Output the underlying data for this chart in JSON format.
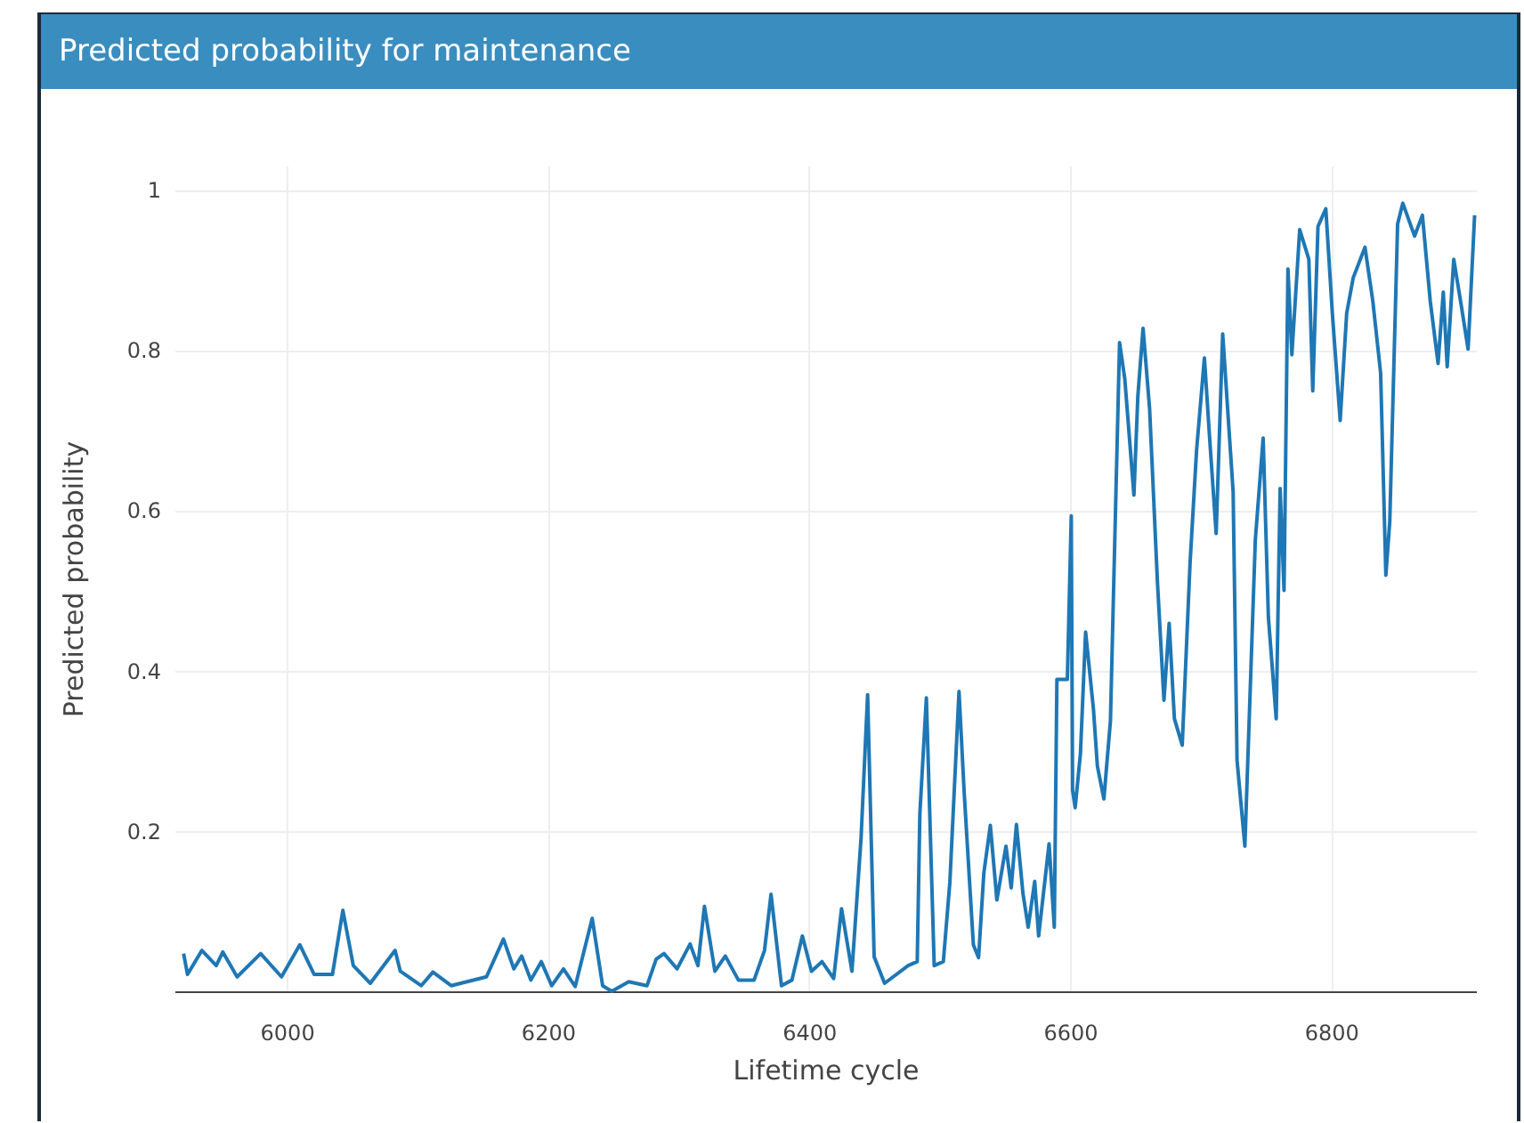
{
  "chart_data": {
    "type": "line",
    "title": "Predicted probability for maintenance",
    "xlabel": "Lifetime cycle",
    "ylabel": "Predicted probability",
    "xlim": [
      5914,
      6911
    ],
    "xticks": [
      6000,
      6200,
      6400,
      6600,
      6800
    ],
    "ylim": [
      0,
      1.03
    ],
    "yticks": [
      0.2,
      0.4,
      0.6,
      0.8,
      1
    ],
    "grid": true,
    "series": [
      {
        "color": "#1f77b4",
        "x": [
          5921,
          5924,
          5935,
          5946,
          5951,
          5962,
          5980,
          5996,
          6010,
          6021,
          6035,
          6043,
          6051,
          6064,
          6083,
          6087,
          6103,
          6112,
          6126,
          6153,
          6166,
          6174,
          6180,
          6187,
          6195,
          6203,
          6212,
          6221,
          6234,
          6242,
          6249,
          6262,
          6276,
          6283,
          6289,
          6299,
          6309,
          6315,
          6320,
          6328,
          6336,
          6346,
          6358,
          6366,
          6371,
          6379,
          6387,
          6395,
          6402,
          6410,
          6419,
          6425,
          6433,
          6440,
          6445,
          6450,
          6458,
          6476,
          6483,
          6485,
          6490,
          6496,
          6503,
          6508,
          6515,
          6519,
          6526,
          6530,
          6534,
          6539,
          6544,
          6551,
          6555,
          6559,
          6564,
          6568,
          6573,
          6576,
          6584,
          6588,
          6590,
          6598,
          6601,
          6602,
          6604,
          6608,
          6612,
          6618,
          6621,
          6626,
          6631,
          6638,
          6642,
          6649,
          6652,
          6656,
          6661,
          6667,
          6672,
          6676,
          6680,
          6686,
          6692,
          6697,
          6703,
          6707,
          6712,
          6717,
          6725,
          6728,
          6734,
          6742,
          6748,
          6752,
          6758,
          6761,
          6764,
          6767,
          6770,
          6776,
          6783,
          6786,
          6790,
          6796,
          6801,
          6807,
          6812,
          6817,
          6826,
          6832,
          6838,
          6842,
          6845,
          6851,
          6855,
          6864,
          6870,
          6876,
          6882,
          6886,
          6889,
          6894,
          6900,
          6905,
          6910
        ],
        "values": [
          0.047,
          0.021,
          0.051,
          0.032,
          0.049,
          0.018,
          0.047,
          0.018,
          0.058,
          0.021,
          0.021,
          0.101,
          0.032,
          0.01,
          0.051,
          0.025,
          0.007,
          0.024,
          0.007,
          0.018,
          0.065,
          0.028,
          0.044,
          0.014,
          0.037,
          0.007,
          0.028,
          0.006,
          0.091,
          0.007,
          0.0,
          0.012,
          0.007,
          0.04,
          0.047,
          0.028,
          0.059,
          0.032,
          0.106,
          0.025,
          0.044,
          0.014,
          0.014,
          0.051,
          0.121,
          0.007,
          0.014,
          0.069,
          0.025,
          0.037,
          0.016,
          0.103,
          0.025,
          0.192,
          0.37,
          0.043,
          0.01,
          0.032,
          0.037,
          0.221,
          0.366,
          0.032,
          0.037,
          0.136,
          0.374,
          0.247,
          0.058,
          0.042,
          0.147,
          0.207,
          0.114,
          0.181,
          0.129,
          0.208,
          0.122,
          0.08,
          0.137,
          0.069,
          0.184,
          0.08,
          0.389,
          0.389,
          0.593,
          0.251,
          0.229,
          0.296,
          0.448,
          0.352,
          0.281,
          0.24,
          0.337,
          0.809,
          0.764,
          0.619,
          0.742,
          0.827,
          0.727,
          0.511,
          0.363,
          0.459,
          0.34,
          0.307,
          0.534,
          0.675,
          0.79,
          0.69,
          0.571,
          0.82,
          0.623,
          0.288,
          0.181,
          0.563,
          0.69,
          0.467,
          0.34,
          0.627,
          0.5,
          0.901,
          0.794,
          0.95,
          0.913,
          0.749,
          0.954,
          0.976,
          0.846,
          0.712,
          0.846,
          0.89,
          0.928,
          0.861,
          0.771,
          0.519,
          0.586,
          0.957,
          0.983,
          0.942,
          0.968,
          0.861,
          0.783,
          0.872,
          0.779,
          0.913,
          0.853,
          0.801,
          0.968
        ]
      }
    ]
  }
}
